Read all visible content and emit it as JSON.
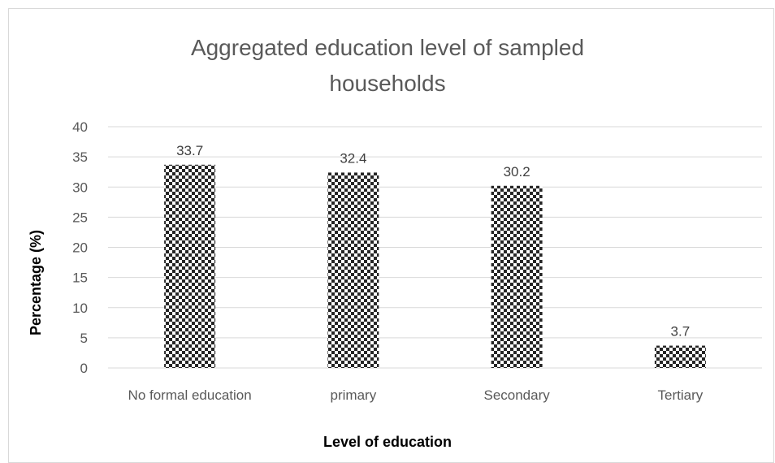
{
  "chart_data": {
    "type": "bar",
    "title": "Aggregated education level of sampled households",
    "title_lines": [
      "Aggregated education level of sampled",
      "households"
    ],
    "xlabel": "Level of education",
    "ylabel": "Percentage (%)",
    "categories": [
      "No formal education",
      "primary",
      "Secondary",
      "Tertiary"
    ],
    "values": [
      33.7,
      32.4,
      30.2,
      3.7
    ],
    "data_labels": [
      "33.7",
      "32.4",
      "30.2",
      "3.7"
    ],
    "ylim": [
      0,
      40
    ],
    "yticks": [
      "0",
      "5",
      "10",
      "15",
      "20",
      "25",
      "30",
      "35",
      "40"
    ],
    "grid": true,
    "legend": "none",
    "bar_pattern": "checkerboard",
    "colors": {
      "bar_dark": "#262626",
      "bar_light": "#ffffff",
      "gridline": "#d9d9d9",
      "tick_text": "#595959",
      "title_text": "#595959"
    }
  }
}
